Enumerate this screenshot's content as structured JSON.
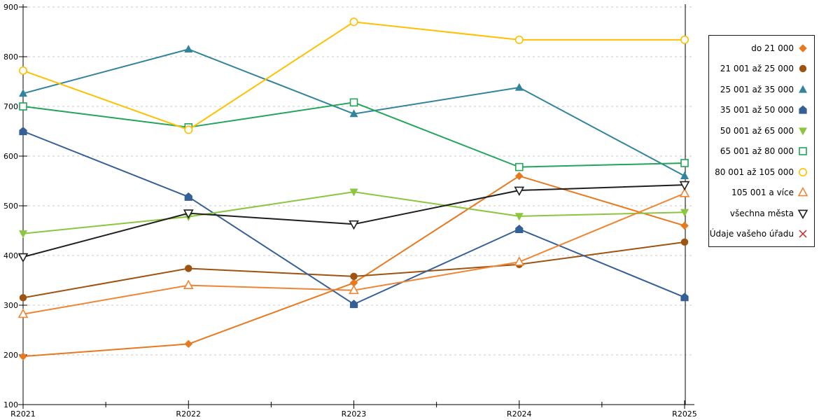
{
  "chart_data": {
    "type": "line",
    "title": "",
    "xlabel": "",
    "ylabel": "",
    "x": [
      "R2021",
      "R2022",
      "R2023",
      "R2024",
      "R2025"
    ],
    "ylim": [
      100,
      900
    ],
    "ytick_step": 100,
    "y_tick_labels": [
      "100",
      "200",
      "300",
      "400",
      "500",
      "600",
      "700",
      "800",
      "900"
    ],
    "grid": "horizontal-dashed",
    "legend_position": "right-outside",
    "series": [
      {
        "name": "do 21 000",
        "marker": "diamond",
        "fill": "solid",
        "color": "#E8791E",
        "values": [
          197,
          222,
          345,
          560,
          460
        ]
      },
      {
        "name": "21 001 až 25 000",
        "marker": "circle",
        "fill": "solid",
        "color": "#9E5310",
        "values": [
          315,
          374,
          358,
          382,
          427
        ]
      },
      {
        "name": "25 001 až 35 000",
        "marker": "triangle-up",
        "fill": "solid",
        "color": "#31849B",
        "values": [
          726,
          815,
          685,
          738,
          560
        ]
      },
      {
        "name": "35 001 až 50 000",
        "marker": "pentagon",
        "fill": "solid",
        "color": "#355F97",
        "values": [
          650,
          518,
          302,
          453,
          316
        ]
      },
      {
        "name": "50 001 až 65 000",
        "marker": "triangle-down",
        "fill": "solid",
        "color": "#8CC63F",
        "values": [
          444,
          478,
          528,
          479,
          487
        ]
      },
      {
        "name": "65 001 až 80 000",
        "marker": "square",
        "fill": "open",
        "color": "#21A559",
        "values": [
          700,
          658,
          708,
          578,
          586
        ]
      },
      {
        "name": "80 001 až 105 000",
        "marker": "circle",
        "fill": "open",
        "color": "#FFC000",
        "values": [
          772,
          653,
          870,
          834,
          834
        ]
      },
      {
        "name": "105 001 a více",
        "marker": "triangle-up",
        "fill": "open",
        "color": "#EF8532",
        "values": [
          282,
          340,
          330,
          387,
          525
        ]
      },
      {
        "name": "všechna města",
        "marker": "triangle-down",
        "fill": "open",
        "color": "#1F1F1F",
        "values": [
          397,
          485,
          463,
          531,
          542
        ]
      },
      {
        "name": "Údaje vašeho úřadu",
        "marker": "x",
        "fill": "open",
        "color": "#CC2222",
        "values": []
      }
    ]
  },
  "colors": {
    "background": "#FFFFFF",
    "grid": "#C8C8C8",
    "axis": "#000000",
    "tick_text": "#000000",
    "legend_border": "#1A1A1A"
  }
}
